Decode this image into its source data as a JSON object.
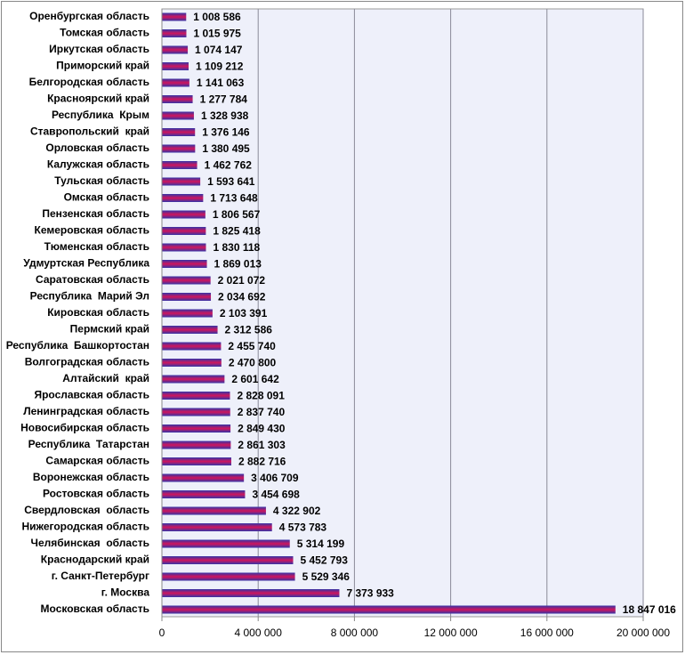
{
  "chart_data": {
    "type": "bar",
    "orientation": "horizontal",
    "categories": [
      "Оренбургская область",
      "Томская область",
      "Иркутская область",
      "Приморский край",
      "Белгородская область",
      "Красноярский край",
      "Республика  Крым",
      "Ставропольский  край",
      "Орловская область",
      "Калужская область",
      "Тульская область",
      "Омская область",
      "Пензенская область",
      "Кемеровская область",
      "Тюменская область",
      "Удмуртская Республика",
      "Саратовская область",
      "Республика  Марий Эл",
      "Кировская область",
      "Пермский край",
      "Республика  Башкортостан",
      "Волгоградская область",
      "Алтайский  край",
      "Ярославская область",
      "Ленинградская область",
      "Новосибирская область",
      "Республика  Татарстан",
      "Самарская область",
      "Воронежская область",
      "Ростовская область",
      "Свердловская  область",
      "Нижегородская область",
      "Челябинская  область",
      "Краснодарский край",
      "г. Санкт-Петербург",
      "г. Москва",
      "Московская область"
    ],
    "values": [
      1008586,
      1015975,
      1074147,
      1109212,
      1141063,
      1277784,
      1328938,
      1376146,
      1380495,
      1462762,
      1593641,
      1713648,
      1806567,
      1825418,
      1830118,
      1869013,
      2021072,
      2034692,
      2103391,
      2312586,
      2455740,
      2470800,
      2601642,
      2828091,
      2837740,
      2849430,
      2861303,
      2882716,
      3406709,
      3454698,
      4322902,
      4573783,
      5314199,
      5452793,
      5529346,
      7373933,
      18847016
    ],
    "value_labels": [
      "1 008 586",
      "1 015 975",
      "1 074 147",
      "1 109 212",
      "1 141 063",
      "1 277 784",
      "1 328 938",
      "1 376 146",
      "1 380 495",
      "1 462 762",
      "1 593 641",
      "1 713 648",
      "1 806 567",
      "1 825 418",
      "1 830 118",
      "1 869 013",
      "2 021 072",
      "2 034 692",
      "2 103 391",
      "2 312 586",
      "2 455 740",
      "2 470 800",
      "2 601 642",
      "2 828 091",
      "2 837 740",
      "2 849 430",
      "2 861 303",
      "2 882 716",
      "3 406 709",
      "3 454 698",
      "4 322 902",
      "4 573 783",
      "5 314 199",
      "5 452 793",
      "5 529 346",
      "7 373 933",
      "18 847 016"
    ],
    "color": "#d0155c",
    "edge_color": "#3434a8",
    "xlim": [
      0,
      20000000
    ],
    "xticks": [
      0,
      {
        "value": 4000000,
        "label": "4 000 000"
      },
      {
        "value": 8000000,
        "label": "8 000 000"
      },
      {
        "value": 12000000,
        "label": "12 000 000"
      },
      {
        "value": 16000000,
        "label": "16 000 000"
      },
      {
        "value": 20000000,
        "label": "20 000 000"
      }
    ],
    "grid": true
  }
}
